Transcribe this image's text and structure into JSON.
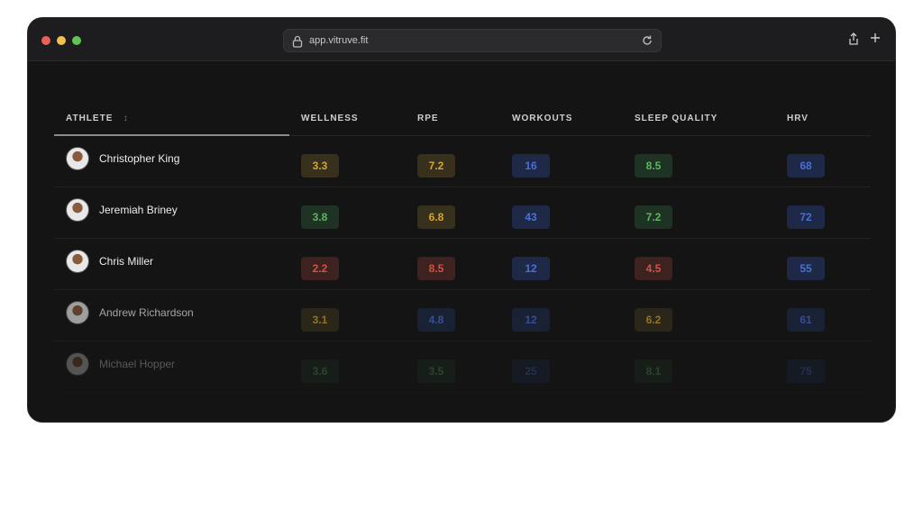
{
  "browser": {
    "url": "app.vitruve.fit"
  },
  "table": {
    "headers": [
      "ATHLETE",
      "WELLNESS",
      "RPE",
      "WORKOUTS",
      "SLEEP QUALITY",
      "HRV"
    ],
    "sort_icon": "↕",
    "rows": [
      {
        "name": "Christopher King",
        "values": [
          "3.3",
          "7.2",
          "16",
          "8.5",
          "68"
        ],
        "colors": [
          "y",
          "y",
          "b",
          "g",
          "b"
        ]
      },
      {
        "name": "Jeremiah Briney",
        "values": [
          "3.8",
          "6.8",
          "43",
          "7.2",
          "72"
        ],
        "colors": [
          "g",
          "y",
          "b",
          "g",
          "b"
        ]
      },
      {
        "name": "Chris Miller",
        "values": [
          "2.2",
          "8.5",
          "12",
          "4.5",
          "55"
        ],
        "colors": [
          "r",
          "r",
          "b",
          "r",
          "b"
        ]
      },
      {
        "name": "Andrew Richardson",
        "values": [
          "3.1",
          "4.8",
          "12",
          "6.2",
          "61"
        ],
        "colors": [
          "y",
          "b",
          "b",
          "y",
          "b"
        ]
      },
      {
        "name": "Michael Hopper",
        "values": [
          "3.6",
          "3.5",
          "25",
          "8.1",
          "75"
        ],
        "colors": [
          "g",
          "g",
          "b",
          "g",
          "b"
        ]
      }
    ]
  },
  "colors": {
    "yellow": "#d4a72c",
    "green": "#5cb85c",
    "red": "#d2533f",
    "blue": "#4a6fd6"
  }
}
